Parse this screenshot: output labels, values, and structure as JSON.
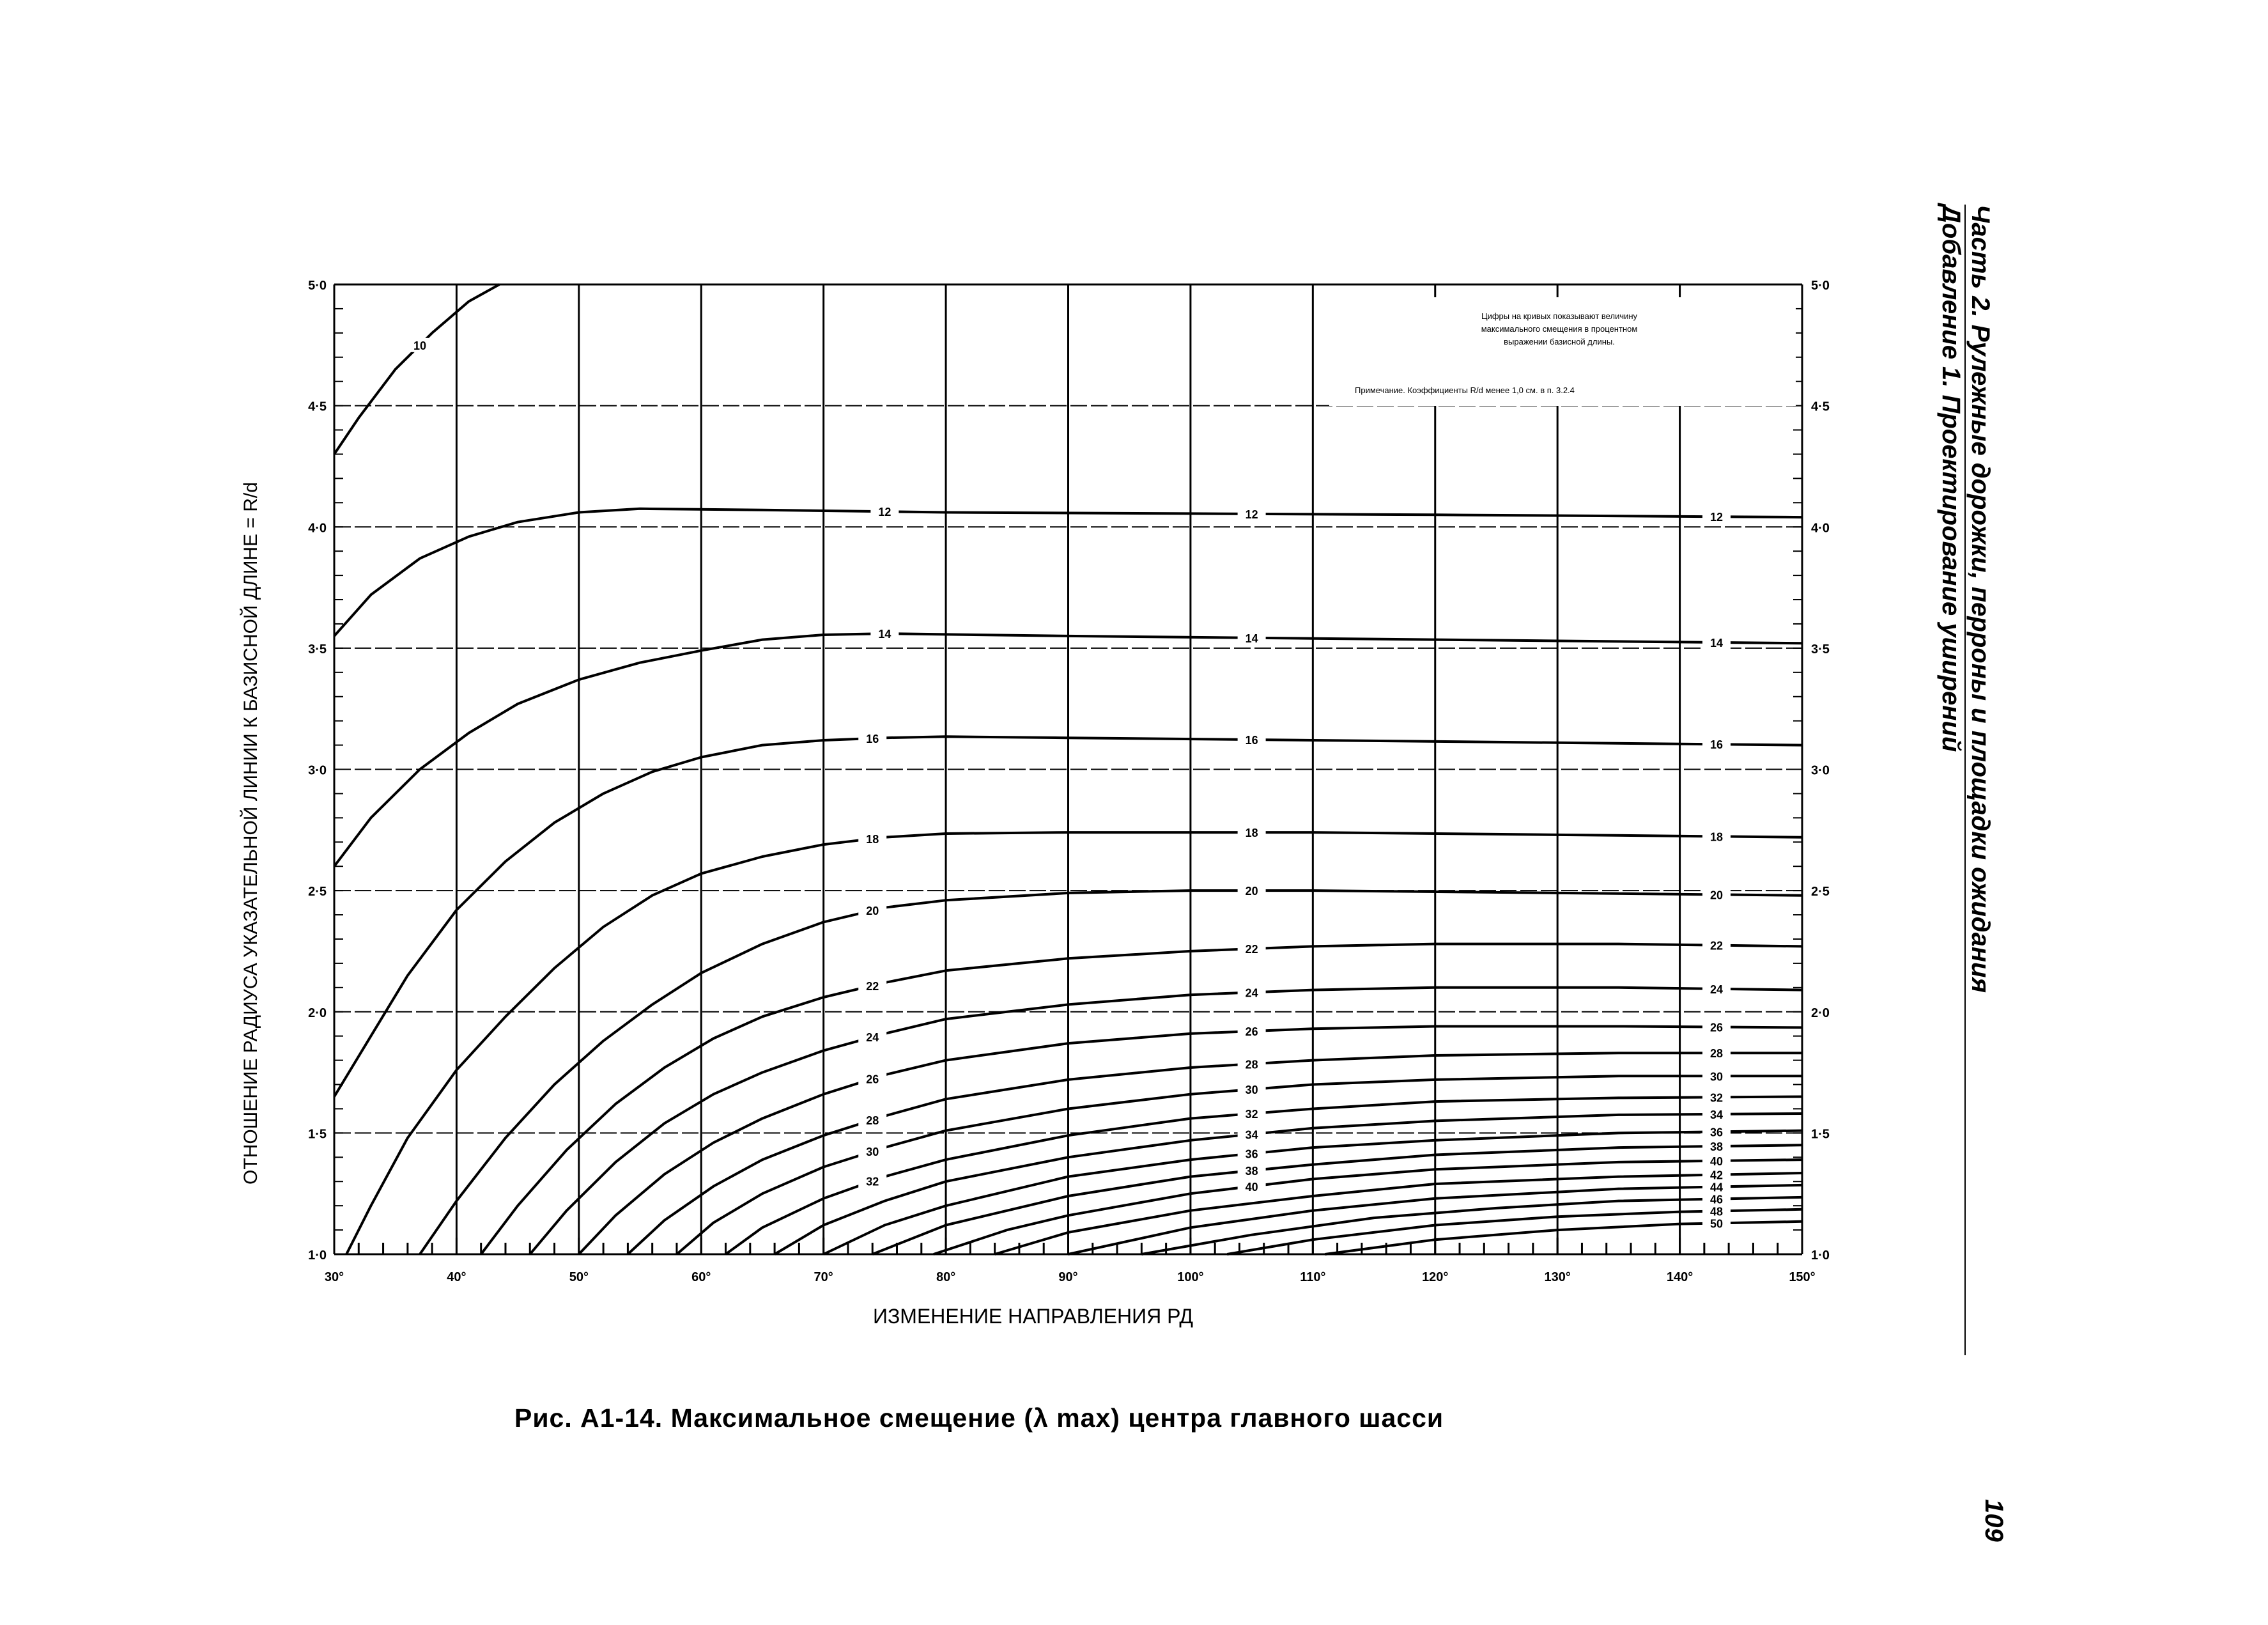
{
  "header": {
    "part": "Часть 2. Рулежные дорожки, перроны и площадки ожидания",
    "appendix": "Добавление 1. Проектирование уширений"
  },
  "page_number": "109",
  "caption": "Рис. А1-14. Максимальное смещение (λ max) центра главного шасси",
  "notes": {
    "legend_text_1": "Цифры на кривых показывают величину",
    "legend_text_2": "максимального смещения в процентном",
    "legend_text_3": "выражении базисной длины.",
    "remark": "Примечание. Коэффициенты R/d менее 1,0 см. в п. 3.2.4"
  },
  "chart_data": {
    "type": "line",
    "xlabel": "ИЗМЕНЕНИЕ НАПРАВЛЕНИЯ РД",
    "ylabel": "ОТНОШЕНИЕ РАДИУСА УКАЗАТЕЛЬНОЙ ЛИНИИ К БАЗИСНОЙ ДЛИНЕ = R/d",
    "xlim": [
      30,
      150
    ],
    "ylim": [
      1.0,
      5.0
    ],
    "x_ticks": [
      "30°",
      "40°",
      "50°",
      "60°",
      "70°",
      "80°",
      "90°",
      "100°",
      "110°",
      "120°",
      "130°",
      "140°",
      "150°"
    ],
    "y_ticks_left": [
      "1·0",
      "1·5",
      "2·0",
      "2·5",
      "3·0",
      "3·5",
      "4·0",
      "4·5",
      "5·0"
    ],
    "y_ticks_right": [
      "1·0",
      "1·5",
      "2·0",
      "2·5",
      "3·0",
      "3·5",
      "4·0",
      "4·5",
      "5·0"
    ],
    "grid": true,
    "series": [
      {
        "name": "10",
        "label_x": 37,
        "points": [
          [
            30,
            4.3
          ],
          [
            32,
            4.45
          ],
          [
            35,
            4.65
          ],
          [
            38,
            4.8
          ],
          [
            41,
            4.93
          ],
          [
            43.5,
            5.0
          ]
        ]
      },
      {
        "name": "12",
        "label_x": 75,
        "label_x2": 105,
        "label_x3": 143,
        "points": [
          [
            30,
            3.55
          ],
          [
            33,
            3.72
          ],
          [
            37,
            3.87
          ],
          [
            41,
            3.96
          ],
          [
            45,
            4.02
          ],
          [
            50,
            4.06
          ],
          [
            55,
            4.075
          ],
          [
            65,
            4.07
          ],
          [
            80,
            4.06
          ],
          [
            100,
            4.055
          ],
          [
            120,
            4.05
          ],
          [
            150,
            4.04
          ]
        ]
      },
      {
        "name": "14",
        "label_x": 75,
        "label_x2": 105,
        "label_x3": 143,
        "points": [
          [
            30,
            2.6
          ],
          [
            33,
            2.8
          ],
          [
            37,
            3.0
          ],
          [
            41,
            3.15
          ],
          [
            45,
            3.27
          ],
          [
            50,
            3.37
          ],
          [
            55,
            3.44
          ],
          [
            60,
            3.49
          ],
          [
            65,
            3.535
          ],
          [
            70,
            3.555
          ],
          [
            75,
            3.56
          ],
          [
            90,
            3.55
          ],
          [
            110,
            3.54
          ],
          [
            130,
            3.53
          ],
          [
            150,
            3.52
          ]
        ]
      },
      {
        "name": "16",
        "label_x": 74,
        "label_x2": 105,
        "label_x3": 143,
        "points": [
          [
            30,
            1.65
          ],
          [
            33,
            1.9
          ],
          [
            36,
            2.15
          ],
          [
            40,
            2.42
          ],
          [
            44,
            2.62
          ],
          [
            48,
            2.78
          ],
          [
            52,
            2.9
          ],
          [
            56,
            2.99
          ],
          [
            60,
            3.05
          ],
          [
            65,
            3.1
          ],
          [
            70,
            3.12
          ],
          [
            75,
            3.13
          ],
          [
            80,
            3.135
          ],
          [
            90,
            3.13
          ],
          [
            110,
            3.12
          ],
          [
            130,
            3.11
          ],
          [
            150,
            3.1
          ]
        ]
      },
      {
        "name": "18",
        "label_x": 74,
        "label_x2": 105,
        "label_x3": 143,
        "points": [
          [
            31,
            1.0
          ],
          [
            33,
            1.2
          ],
          [
            36,
            1.48
          ],
          [
            40,
            1.76
          ],
          [
            44,
            1.98
          ],
          [
            48,
            2.18
          ],
          [
            52,
            2.35
          ],
          [
            56,
            2.48
          ],
          [
            60,
            2.57
          ],
          [
            65,
            2.64
          ],
          [
            70,
            2.69
          ],
          [
            75,
            2.72
          ],
          [
            80,
            2.735
          ],
          [
            90,
            2.74
          ],
          [
            110,
            2.74
          ],
          [
            130,
            2.73
          ],
          [
            150,
            2.72
          ]
        ]
      },
      {
        "name": "20",
        "label_x": 74,
        "label_x2": 105,
        "label_x3": 143,
        "points": [
          [
            37,
            1.0
          ],
          [
            40,
            1.22
          ],
          [
            44,
            1.48
          ],
          [
            48,
            1.7
          ],
          [
            52,
            1.88
          ],
          [
            56,
            2.03
          ],
          [
            60,
            2.16
          ],
          [
            65,
            2.28
          ],
          [
            70,
            2.37
          ],
          [
            75,
            2.43
          ],
          [
            80,
            2.46
          ],
          [
            90,
            2.49
          ],
          [
            100,
            2.5
          ],
          [
            110,
            2.5
          ],
          [
            130,
            2.49
          ],
          [
            150,
            2.48
          ]
        ]
      },
      {
        "name": "22",
        "label_x": 74,
        "label_x2": 105,
        "label_x3": 143,
        "points": [
          [
            42,
            1.0
          ],
          [
            45,
            1.2
          ],
          [
            49,
            1.43
          ],
          [
            53,
            1.62
          ],
          [
            57,
            1.77
          ],
          [
            61,
            1.89
          ],
          [
            65,
            1.98
          ],
          [
            70,
            2.06
          ],
          [
            75,
            2.12
          ],
          [
            80,
            2.17
          ],
          [
            90,
            2.22
          ],
          [
            100,
            2.25
          ],
          [
            110,
            2.27
          ],
          [
            120,
            2.28
          ],
          [
            135,
            2.28
          ],
          [
            150,
            2.27
          ]
        ]
      },
      {
        "name": "24",
        "label_x": 74,
        "label_x2": 105,
        "label_x3": 143,
        "points": [
          [
            46,
            1.0
          ],
          [
            49,
            1.18
          ],
          [
            53,
            1.38
          ],
          [
            57,
            1.54
          ],
          [
            61,
            1.66
          ],
          [
            65,
            1.75
          ],
          [
            70,
            1.84
          ],
          [
            75,
            1.91
          ],
          [
            80,
            1.97
          ],
          [
            90,
            2.03
          ],
          [
            100,
            2.07
          ],
          [
            110,
            2.09
          ],
          [
            120,
            2.1
          ],
          [
            135,
            2.1
          ],
          [
            150,
            2.09
          ]
        ]
      },
      {
        "name": "26",
        "label_x": 74,
        "label_x2": 105,
        "label_x3": 143,
        "points": [
          [
            50,
            1.0
          ],
          [
            53,
            1.16
          ],
          [
            57,
            1.33
          ],
          [
            61,
            1.46
          ],
          [
            65,
            1.56
          ],
          [
            70,
            1.66
          ],
          [
            75,
            1.74
          ],
          [
            80,
            1.8
          ],
          [
            90,
            1.87
          ],
          [
            100,
            1.91
          ],
          [
            110,
            1.93
          ],
          [
            120,
            1.94
          ],
          [
            135,
            1.94
          ],
          [
            150,
            1.935
          ]
        ]
      },
      {
        "name": "28",
        "label_x": 74,
        "label_x2": 105,
        "label_x3": 143,
        "points": [
          [
            54,
            1.0
          ],
          [
            57,
            1.14
          ],
          [
            61,
            1.28
          ],
          [
            65,
            1.39
          ],
          [
            70,
            1.49
          ],
          [
            75,
            1.57
          ],
          [
            80,
            1.64
          ],
          [
            90,
            1.72
          ],
          [
            100,
            1.77
          ],
          [
            110,
            1.8
          ],
          [
            120,
            1.82
          ],
          [
            135,
            1.83
          ],
          [
            150,
            1.83
          ]
        ]
      },
      {
        "name": "30",
        "label_x": 74,
        "label_x2": 105,
        "label_x3": 143,
        "points": [
          [
            58,
            1.0
          ],
          [
            61,
            1.13
          ],
          [
            65,
            1.25
          ],
          [
            70,
            1.36
          ],
          [
            75,
            1.44
          ],
          [
            80,
            1.51
          ],
          [
            90,
            1.6
          ],
          [
            100,
            1.66
          ],
          [
            110,
            1.7
          ],
          [
            120,
            1.72
          ],
          [
            135,
            1.735
          ],
          [
            150,
            1.735
          ]
        ]
      },
      {
        "name": "32",
        "label_x": 74,
        "label_x2": 105,
        "label_x3": 143,
        "points": [
          [
            62,
            1.0
          ],
          [
            65,
            1.11
          ],
          [
            70,
            1.23
          ],
          [
            75,
            1.32
          ],
          [
            80,
            1.39
          ],
          [
            90,
            1.49
          ],
          [
            100,
            1.56
          ],
          [
            110,
            1.6
          ],
          [
            120,
            1.63
          ],
          [
            135,
            1.645
          ],
          [
            150,
            1.65
          ]
        ]
      },
      {
        "name": "34",
        "label_x": 105,
        "label_x3": 143,
        "points": [
          [
            66,
            1.0
          ],
          [
            70,
            1.12
          ],
          [
            75,
            1.22
          ],
          [
            80,
            1.3
          ],
          [
            90,
            1.4
          ],
          [
            100,
            1.47
          ],
          [
            110,
            1.52
          ],
          [
            120,
            1.55
          ],
          [
            135,
            1.575
          ],
          [
            150,
            1.58
          ]
        ]
      },
      {
        "name": "36",
        "label_x": 105,
        "label_x3": 143,
        "points": [
          [
            70,
            1.0
          ],
          [
            75,
            1.12
          ],
          [
            80,
            1.2
          ],
          [
            90,
            1.32
          ],
          [
            100,
            1.39
          ],
          [
            110,
            1.44
          ],
          [
            120,
            1.47
          ],
          [
            135,
            1.5
          ],
          [
            150,
            1.51
          ]
        ]
      },
      {
        "name": "38",
        "label_x": 105,
        "label_x3": 143,
        "points": [
          [
            74,
            1.0
          ],
          [
            80,
            1.12
          ],
          [
            90,
            1.24
          ],
          [
            100,
            1.32
          ],
          [
            110,
            1.37
          ],
          [
            120,
            1.41
          ],
          [
            135,
            1.44
          ],
          [
            150,
            1.45
          ]
        ]
      },
      {
        "name": "40",
        "label_x": 105,
        "label_x3": 143,
        "points": [
          [
            79,
            1.0
          ],
          [
            85,
            1.1
          ],
          [
            90,
            1.16
          ],
          [
            100,
            1.25
          ],
          [
            110,
            1.31
          ],
          [
            120,
            1.35
          ],
          [
            135,
            1.38
          ],
          [
            150,
            1.39
          ]
        ]
      },
      {
        "name": "42",
        "label_x3": 143,
        "points": [
          [
            84,
            1.0
          ],
          [
            90,
            1.09
          ],
          [
            100,
            1.18
          ],
          [
            110,
            1.24
          ],
          [
            120,
            1.29
          ],
          [
            135,
            1.32
          ],
          [
            150,
            1.335
          ]
        ]
      },
      {
        "name": "44",
        "label_x3": 143,
        "points": [
          [
            90,
            1.0
          ],
          [
            100,
            1.11
          ],
          [
            110,
            1.18
          ],
          [
            120,
            1.23
          ],
          [
            135,
            1.27
          ],
          [
            150,
            1.285
          ]
        ]
      },
      {
        "name": "46",
        "label_x3": 143,
        "points": [
          [
            96,
            1.0
          ],
          [
            105,
            1.08
          ],
          [
            115,
            1.15
          ],
          [
            125,
            1.19
          ],
          [
            135,
            1.22
          ],
          [
            150,
            1.235
          ]
        ]
      },
      {
        "name": "48",
        "label_x3": 143,
        "points": [
          [
            103,
            1.0
          ],
          [
            110,
            1.06
          ],
          [
            120,
            1.12
          ],
          [
            130,
            1.155
          ],
          [
            140,
            1.175
          ],
          [
            150,
            1.185
          ]
        ]
      },
      {
        "name": "50",
        "label_x3": 143,
        "points": [
          [
            111,
            1.0
          ],
          [
            120,
            1.06
          ],
          [
            130,
            1.1
          ],
          [
            140,
            1.125
          ],
          [
            150,
            1.135
          ]
        ]
      }
    ]
  }
}
